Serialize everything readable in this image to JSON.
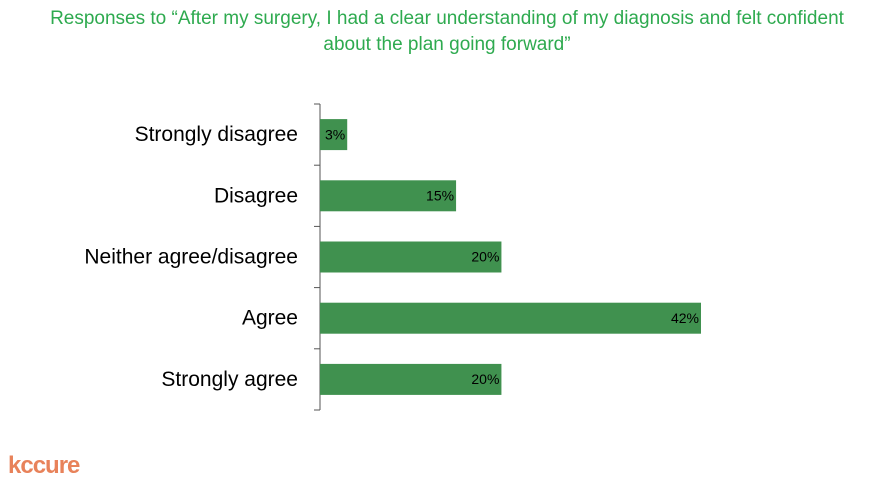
{
  "chart_data": {
    "type": "bar",
    "orientation": "horizontal",
    "title": "Responses to “After my surgery, I had a clear understanding of my diagnosis and felt confident about the plan going forward”",
    "categories": [
      "Strongly disagree",
      "Disagree",
      "Neither agree/disagree",
      "Agree",
      "Strongly agree"
    ],
    "values": [
      3,
      15,
      20,
      42,
      20
    ],
    "value_labels": [
      "3%",
      "15%",
      "20%",
      "42%",
      "20%"
    ],
    "color": "#40914f"
  },
  "logo": "kccure"
}
